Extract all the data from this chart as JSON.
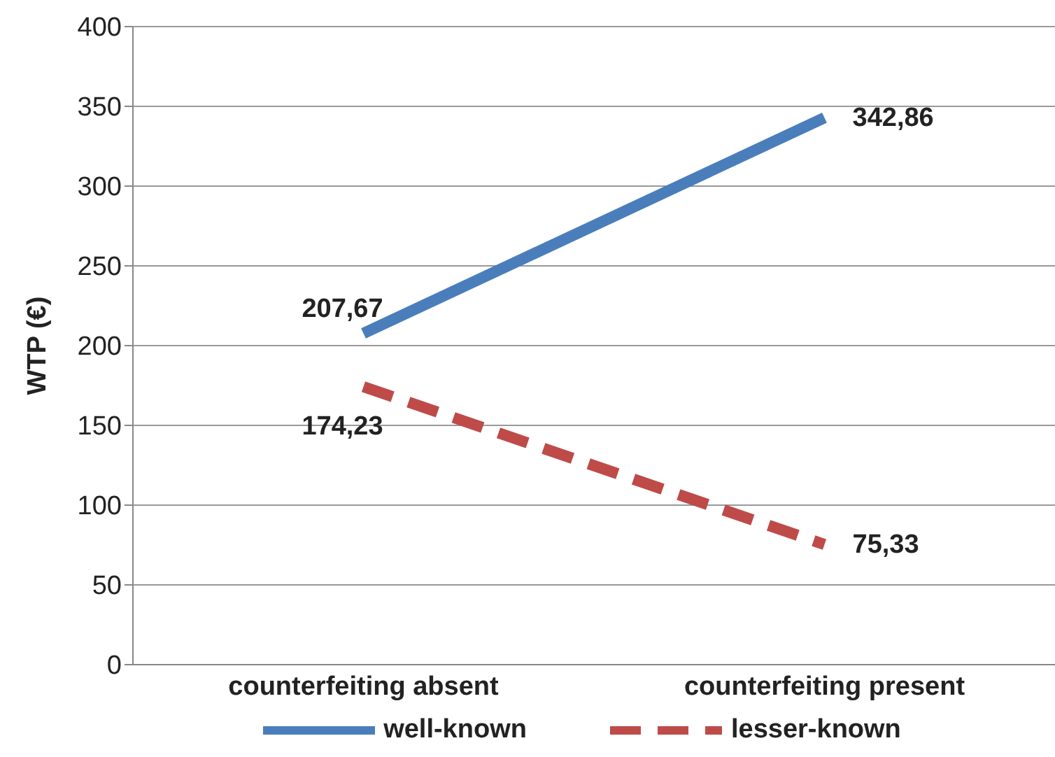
{
  "chart_data": {
    "type": "line",
    "ylabel": "WTP (€)",
    "categories": [
      "counterfeiting absent",
      "counterfeiting present"
    ],
    "series": [
      {
        "name": "well-known",
        "color": "#4a7ebb",
        "values": [
          207.67,
          342.86
        ],
        "value_labels": [
          "207,67",
          "342,86"
        ],
        "line_style": "solid"
      },
      {
        "name": "lesser-known",
        "color": "#be4b48",
        "values": [
          174.23,
          75.33
        ],
        "value_labels": [
          "174,23",
          "75,33"
        ],
        "line_style": "dashed"
      }
    ],
    "ylim": [
      0,
      400
    ],
    "yticks": [
      0,
      50,
      100,
      150,
      200,
      250,
      300,
      350,
      400
    ],
    "grid": "y",
    "legend": "bottom",
    "marker": "none"
  }
}
